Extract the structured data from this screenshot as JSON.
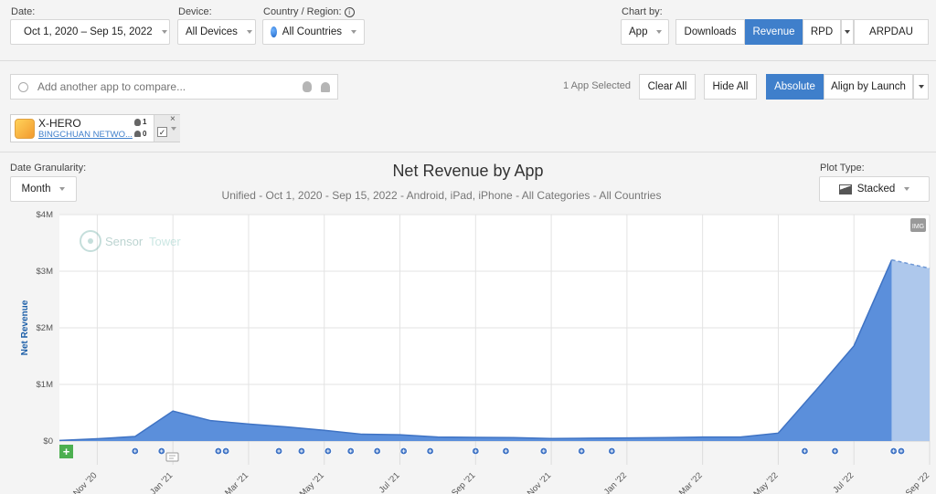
{
  "filters": {
    "date_label": "Date:",
    "date_value": "Oct 1, 2020 – Sep 15, 2022",
    "device_label": "Device:",
    "device_value": "All Devices",
    "country_label": "Country / Region:",
    "country_info": "i",
    "country_value": "All Countries"
  },
  "chart_by": {
    "label": "Chart by:",
    "app_value": "App",
    "metrics": [
      "Downloads",
      "Revenue",
      "RPD",
      "ARPDAU"
    ],
    "active_metric": "Revenue"
  },
  "compare": {
    "placeholder": "Add another app to compare...",
    "apps_selected": "1 App Selected",
    "clear_all": "Clear All",
    "hide_all": "Hide All",
    "absolute": "Absolute",
    "align_by_launch": "Align by Launch"
  },
  "app_card": {
    "name": "X-HERO",
    "publisher": "BINGCHUAN NETWO...",
    "ios_count": "1",
    "android_count": "0",
    "close": "×",
    "check": "✓"
  },
  "granularity": {
    "label": "Date Granularity:",
    "value": "Month"
  },
  "plot_type": {
    "label": "Plot Type:",
    "value": "Stacked"
  },
  "img_badge": "IMG",
  "watermark": {
    "sensor": "Sensor",
    "tower": "Tower"
  },
  "add_icon": "+",
  "colors": {
    "accent": "#3f7fcb",
    "area": "#5b8fdb",
    "projected": "#aec8ec",
    "title_blue": "#1d5fa8"
  },
  "chart_data": {
    "type": "area",
    "title": "Net Revenue by App",
    "subtitle": "Unified - Oct 1, 2020 - Sep 15, 2022 - Android, iPad, iPhone - All Categories - All Countries",
    "ylabel": "Net Revenue",
    "ylim": [
      0,
      4000000
    ],
    "y_ticks": [
      {
        "value": 0,
        "label": "$0"
      },
      {
        "value": 1000000,
        "label": "$1M"
      },
      {
        "value": 2000000,
        "label": "$2M"
      },
      {
        "value": 3000000,
        "label": "$3M"
      },
      {
        "value": 4000000,
        "label": "$4M"
      }
    ],
    "x_ticks": [
      "Nov '20",
      "Jan '21",
      "Mar '21",
      "May '21",
      "Jul '21",
      "Sep '21",
      "Nov '21",
      "Jan '22",
      "Mar '22",
      "May '22",
      "Jul '22",
      "Sep '22"
    ],
    "months": [
      "Oct 2020",
      "Nov 2020",
      "Dec 2020",
      "Jan 2021",
      "Feb 2021",
      "Mar 2021",
      "Apr 2021",
      "May 2021",
      "Jun 2021",
      "Jul 2021",
      "Aug 2021",
      "Sep 2021",
      "Oct 2021",
      "Nov 2021",
      "Dec 2021",
      "Jan 2022",
      "Feb 2022",
      "Mar 2022",
      "Apr 2022",
      "May 2022",
      "Jun 2022",
      "Jul 2022",
      "Aug 2022",
      "Sep 2022"
    ],
    "series": [
      {
        "name": "X-HERO",
        "values": [
          10000,
          40000,
          80000,
          530000,
          360000,
          300000,
          250000,
          190000,
          120000,
          110000,
          70000,
          65000,
          60000,
          45000,
          50000,
          55000,
          60000,
          70000,
          70000,
          140000,
          900000,
          1680000,
          3200000,
          3050000
        ],
        "projected_from_index": 22
      }
    ],
    "event_markers_months": [
      2.0,
      2.7,
      4.2,
      4.4,
      5.8,
      6.4,
      7.1,
      7.7,
      8.4,
      9.1,
      9.8,
      11.0,
      11.8,
      12.8,
      13.8,
      14.6,
      19.7,
      20.5,
      22.05,
      22.25
    ]
  }
}
